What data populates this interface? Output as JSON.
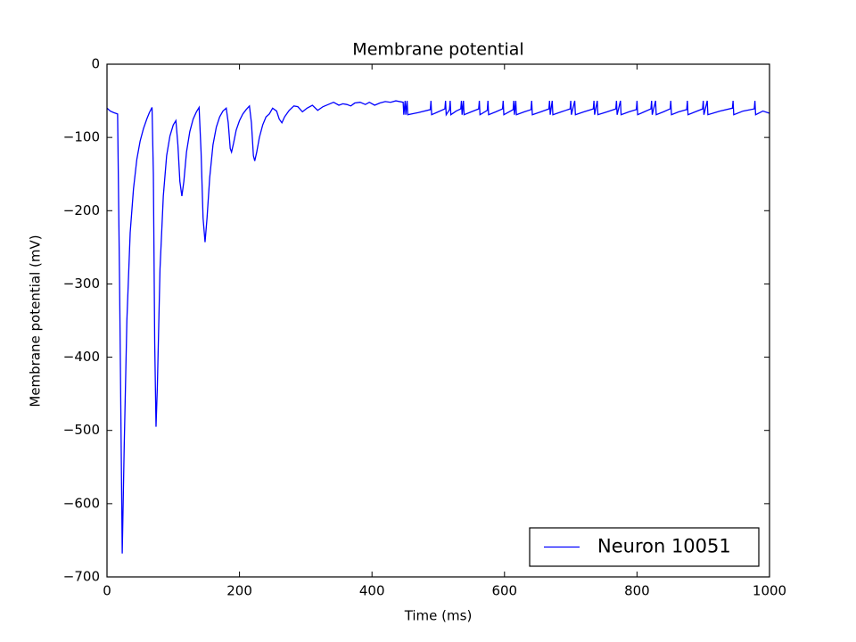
{
  "chart_data": {
    "type": "line",
    "title": "Membrane potential",
    "xlabel": "Time (ms)",
    "ylabel": "Membrane potential (mV)",
    "xlim": [
      0,
      1000
    ],
    "xticks": [
      0,
      200,
      400,
      600,
      800,
      1000
    ],
    "ylim": [
      -700,
      0
    ],
    "yticks": [
      {
        "value": -700,
        "label": "−700"
      },
      {
        "value": -600,
        "label": "−600"
      },
      {
        "value": -500,
        "label": "−500"
      },
      {
        "value": -400,
        "label": "−400"
      },
      {
        "value": -300,
        "label": "−300"
      },
      {
        "value": -200,
        "label": "−200"
      },
      {
        "value": -100,
        "label": "−100"
      },
      0
    ],
    "legend": "lower right",
    "grid": false,
    "x": [
      0,
      5,
      10,
      16,
      19,
      23,
      26,
      30,
      35,
      40,
      45,
      50,
      55,
      60,
      64,
      68,
      70,
      72,
      74,
      76,
      80,
      85,
      90,
      95,
      100,
      104,
      107,
      110,
      113,
      116,
      120,
      125,
      130,
      135,
      139,
      142,
      145,
      148,
      151,
      155,
      160,
      165,
      170,
      175,
      180,
      183,
      186,
      188,
      191,
      195,
      200,
      205,
      210,
      215,
      218,
      221,
      223,
      226,
      230,
      235,
      240,
      245,
      250,
      256,
      260,
      264,
      268,
      275,
      282,
      288,
      295,
      302,
      310,
      318,
      326,
      334,
      342,
      350,
      356,
      362,
      368,
      374,
      382,
      390,
      396,
      404,
      412,
      420,
      428,
      436,
      447,
      448,
      450,
      451,
      453,
      454,
      470,
      488,
      489,
      490,
      500,
      510,
      511,
      512,
      517,
      518,
      519,
      527,
      534,
      535,
      536,
      538,
      539,
      550,
      561,
      562,
      563,
      574,
      575,
      576,
      587,
      597,
      598,
      599,
      613,
      614,
      615,
      617,
      618,
      630,
      640,
      641,
      642,
      655,
      667,
      668,
      669,
      672,
      673,
      686,
      699,
      700,
      701,
      706,
      707,
      720,
      734,
      735,
      736,
      740,
      741,
      755,
      768,
      769,
      770,
      775,
      776,
      788,
      799,
      800,
      801,
      811,
      821,
      822,
      823,
      828,
      829,
      840,
      850,
      851,
      852,
      863,
      875,
      876,
      877,
      888,
      899,
      900,
      901,
      906,
      907,
      925,
      944,
      945,
      946,
      960,
      977,
      978,
      979,
      990,
      1000
    ],
    "series": [
      {
        "name": "Neuron 10051",
        "color": "#0000ff",
        "values": [
          -60,
          -64,
          -66,
          -68,
          -300,
          -668,
          -520,
          -350,
          -230,
          -170,
          -130,
          -105,
          -88,
          -75,
          -66,
          -59,
          -150,
          -380,
          -495,
          -440,
          -280,
          -180,
          -125,
          -98,
          -83,
          -77,
          -110,
          -160,
          -180,
          -160,
          -120,
          -92,
          -75,
          -65,
          -59,
          -120,
          -210,
          -243,
          -210,
          -155,
          -110,
          -86,
          -72,
          -64,
          -60,
          -80,
          -115,
          -120,
          -108,
          -90,
          -77,
          -68,
          -62,
          -57,
          -80,
          -125,
          -132,
          -120,
          -100,
          -83,
          -72,
          -68,
          -60,
          -64,
          -75,
          -80,
          -72,
          -63,
          -57,
          -58,
          -65,
          -60,
          -56,
          -63,
          -58,
          -55,
          -52,
          -56,
          -54,
          -55,
          -57,
          -53,
          -52,
          -55,
          -52,
          -56,
          -53,
          -51,
          -52,
          -50,
          -52,
          -69,
          -50,
          -69,
          -50,
          -69,
          -66,
          -62,
          -50,
          -69,
          -65,
          -61,
          -50,
          -69,
          -62,
          -50,
          -69,
          -64,
          -61,
          -50,
          -69,
          -50,
          -69,
          -65,
          -61,
          -50,
          -69,
          -63,
          -50,
          -69,
          -65,
          -61,
          -50,
          -69,
          -62,
          -50,
          -69,
          -50,
          -69,
          -65,
          -62,
          -50,
          -69,
          -65,
          -61,
          -50,
          -69,
          -50,
          -69,
          -65,
          -61,
          -50,
          -69,
          -50,
          -69,
          -65,
          -61,
          -50,
          -69,
          -50,
          -69,
          -65,
          -61,
          -50,
          -69,
          -50,
          -69,
          -65,
          -62,
          -50,
          -69,
          -65,
          -61,
          -50,
          -69,
          -50,
          -69,
          -65,
          -61,
          -50,
          -69,
          -65,
          -62,
          -50,
          -69,
          -65,
          -61,
          -50,
          -69,
          -50,
          -69,
          -64,
          -60,
          -50,
          -69,
          -64,
          -61,
          -50,
          -69,
          -64,
          -67
        ]
      }
    ]
  }
}
